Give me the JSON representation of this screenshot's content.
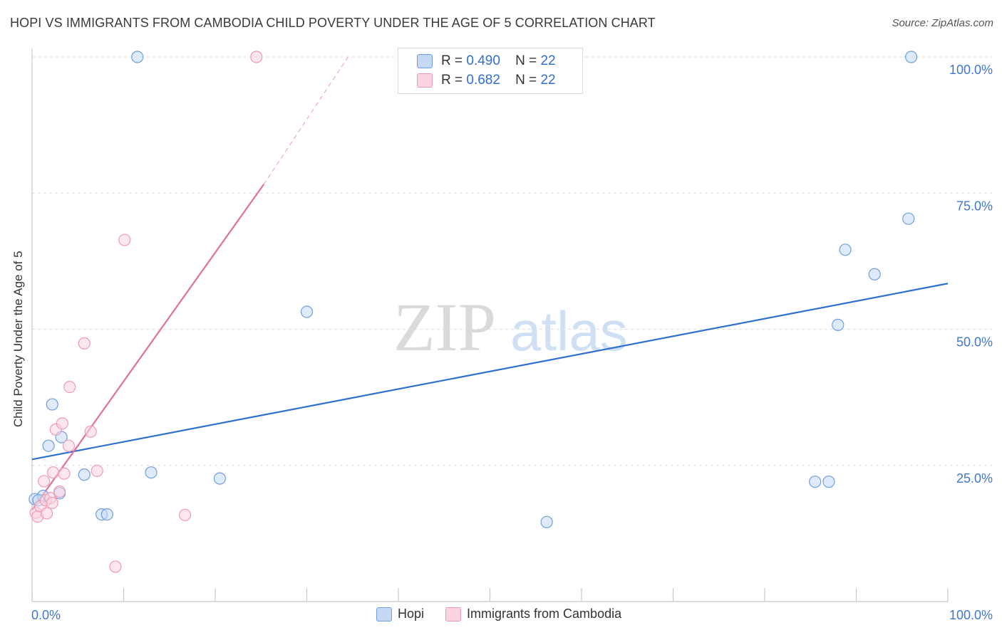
{
  "title": "HOPI VS IMMIGRANTS FROM CAMBODIA CHILD POVERTY UNDER THE AGE OF 5 CORRELATION CHART",
  "source": "Source: ZipAtlas.com",
  "watermark": {
    "zip": "ZIP",
    "atlas": "atlas"
  },
  "colors": {
    "hopi": "#6f9fe0",
    "hopi_line": "#2e6fd0",
    "cambodia": "#ee9ab6",
    "cambodia_line": "#e0709a",
    "tick_label": "#3f78d0"
  },
  "stats": [
    {
      "r_label": "R =",
      "r_value": "0.490",
      "n_label": "N =",
      "n_value": "22"
    },
    {
      "r_label": "R =",
      "r_value": "0.682",
      "n_label": "N =",
      "n_value": "22"
    }
  ],
  "legend": {
    "hopi": "Hopi",
    "cambodia": "Immigrants from Cambodia"
  },
  "chart_data": {
    "type": "scatter",
    "title": "HOPI VS IMMIGRANTS FROM CAMBODIA CHILD POVERTY UNDER THE AGE OF 5 CORRELATION CHART",
    "xlabel": "",
    "ylabel": "Child Poverty Under the Age of 5",
    "xlim": [
      0,
      100
    ],
    "ylim": [
      0,
      100
    ],
    "x_tick_labels": [
      "0.0%",
      "100.0%"
    ],
    "y_ticks": [
      25,
      50,
      75,
      100
    ],
    "y_tick_labels": [
      "25.0%",
      "50.0%",
      "75.0%",
      "100.0%"
    ],
    "series": [
      {
        "name": "Hopi",
        "points": [
          [
            0.3,
            18.8
          ],
          [
            1.2,
            19.4
          ],
          [
            1.8,
            28.6
          ],
          [
            2.2,
            36.2
          ],
          [
            3.0,
            19.9
          ],
          [
            3.2,
            30.2
          ],
          [
            5.7,
            23.3
          ],
          [
            7.6,
            16.0
          ],
          [
            8.2,
            16.0
          ],
          [
            11.5,
            100.0
          ],
          [
            13.0,
            23.7
          ],
          [
            20.5,
            22.6
          ],
          [
            30.0,
            53.2
          ],
          [
            56.2,
            14.6
          ],
          [
            85.5,
            22.0
          ],
          [
            87.0,
            22.0
          ],
          [
            88.0,
            50.8
          ],
          [
            88.8,
            64.6
          ],
          [
            92.0,
            60.1
          ],
          [
            95.7,
            70.3
          ],
          [
            96.0,
            100.0
          ],
          [
            0.7,
            18.6
          ]
        ],
        "trend": {
          "x": [
            0,
            100
          ],
          "y": [
            26.1,
            58.4
          ]
        }
      },
      {
        "name": "Immigrants from Cambodia",
        "points": [
          [
            0.4,
            16.3
          ],
          [
            0.6,
            15.6
          ],
          [
            0.9,
            17.5
          ],
          [
            1.3,
            22.1
          ],
          [
            1.5,
            18.6
          ],
          [
            1.6,
            16.2
          ],
          [
            2.0,
            19.0
          ],
          [
            2.2,
            18.1
          ],
          [
            2.3,
            23.7
          ],
          [
            2.6,
            31.6
          ],
          [
            3.0,
            20.2
          ],
          [
            3.3,
            32.7
          ],
          [
            3.5,
            23.5
          ],
          [
            4.0,
            28.6
          ],
          [
            4.1,
            39.4
          ],
          [
            5.7,
            47.4
          ],
          [
            6.4,
            31.2
          ],
          [
            7.1,
            24.0
          ],
          [
            9.1,
            6.4
          ],
          [
            10.1,
            66.4
          ],
          [
            16.7,
            15.9
          ],
          [
            24.5,
            100.0
          ]
        ],
        "trend": {
          "x": [
            0,
            25.3
          ],
          "y": [
            16.8,
            76.6
          ]
        },
        "trend_extension": {
          "x": [
            25.3,
            34.5
          ],
          "y": [
            76.6,
            100.0
          ]
        }
      }
    ]
  }
}
